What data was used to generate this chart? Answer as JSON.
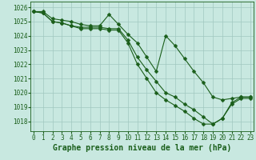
{
  "title": "Graphe pression niveau de la mer (hPa)",
  "bg_color": "#c8e8e0",
  "grid_color": "#a0c8c0",
  "line_color": "#1a5e1a",
  "xlim": [
    -0.3,
    23.3
  ],
  "ylim": [
    1017.3,
    1026.4
  ],
  "yticks": [
    1018,
    1019,
    1020,
    1021,
    1022,
    1023,
    1024,
    1025,
    1026
  ],
  "xticks": [
    0,
    1,
    2,
    3,
    4,
    5,
    6,
    7,
    8,
    9,
    10,
    11,
    12,
    13,
    14,
    15,
    16,
    17,
    18,
    19,
    20,
    21,
    22,
    23
  ],
  "series": [
    [
      1025.7,
      1025.7,
      1025.2,
      1025.1,
      1025.0,
      1024.8,
      1024.7,
      1024.7,
      1025.5,
      1024.8,
      1024.1,
      1023.5,
      1022.5,
      1021.5,
      1024.0,
      1023.3,
      1022.4,
      1021.5,
      1020.7,
      1019.7,
      1019.5,
      1019.6,
      1019.7,
      1019.7
    ],
    [
      1025.7,
      1025.6,
      1025.0,
      1024.9,
      1024.7,
      1024.6,
      1024.6,
      1024.6,
      1024.5,
      1024.5,
      1023.7,
      1022.5,
      1021.6,
      1020.8,
      1020.0,
      1019.7,
      1019.2,
      1018.8,
      1018.3,
      1017.8,
      1018.2,
      1019.2,
      1019.6,
      1019.6
    ],
    [
      1025.7,
      1025.6,
      1025.0,
      1024.9,
      1024.7,
      1024.5,
      1024.5,
      1024.5,
      1024.4,
      1024.4,
      1023.5,
      1022.0,
      1021.0,
      1020.0,
      1019.5,
      1019.1,
      1018.7,
      1018.2,
      1017.8,
      1017.8,
      1018.2,
      1019.3,
      1019.7,
      1019.7
    ]
  ],
  "marker": "D",
  "markersize": 2.5,
  "linewidth": 0.8,
  "xlabel_fontsize": 7,
  "tick_fontsize": 5.5
}
